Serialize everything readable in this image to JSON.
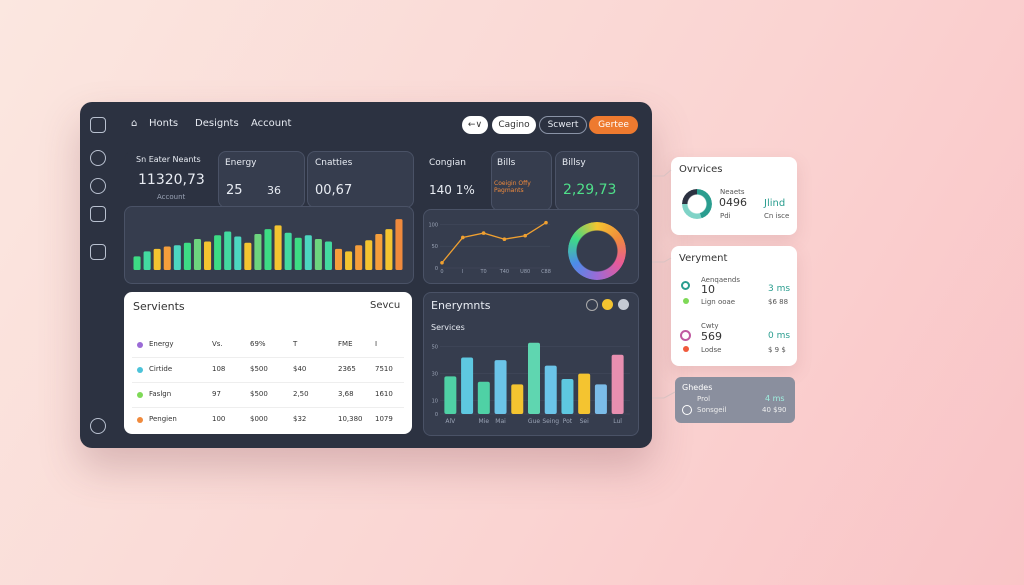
{
  "nav": {
    "items": [
      "Honts",
      "Designts",
      "Account"
    ],
    "buttons": [
      "←∨",
      "Cagino",
      "Scwert",
      "Gertee"
    ]
  },
  "cards": [
    {
      "title": "Sn Eater Neants",
      "value": "11320,73",
      "caption": "Account"
    },
    {
      "title": "Energy",
      "value": "25",
      "value2": "36"
    },
    {
      "title": "Cnatties",
      "value": "00,67"
    },
    {
      "title": "Congian",
      "value": "140 1%"
    },
    {
      "title": "Bills",
      "caption": "Coeigin Offy Pagmants"
    },
    {
      "title": "Billsy",
      "value": "2,29,73"
    }
  ],
  "spark_bars": {
    "values": [
      22,
      30,
      34,
      38,
      40,
      44,
      50,
      46,
      56,
      62,
      54,
      44,
      58,
      66,
      72,
      60,
      52,
      56,
      50,
      46,
      34,
      30,
      40,
      48,
      58,
      66,
      82
    ],
    "colors": [
      "#3ddc84",
      "#43d9a0",
      "#f4c430",
      "#f59e3b",
      "#4cd6c0",
      "#3ddc84",
      "#6dd47e",
      "#f4c430",
      "#3ddc84",
      "#43d9a0",
      "#4cd6c0",
      "#f4c430",
      "#6dd47e",
      "#3ddc84",
      "#f4c430",
      "#43d9a0",
      "#3ddc84",
      "#4cd6c0",
      "#6dd47e",
      "#43d9a0",
      "#f59e3b",
      "#f4c430",
      "#f59e3b",
      "#f4c430",
      "#f59e3b",
      "#f4c430",
      "#f08a3c"
    ]
  },
  "line_chart": {
    "categories": [
      "0",
      "I",
      "T0",
      "T40",
      "U80",
      "C88"
    ],
    "values": [
      12,
      70,
      80,
      66,
      74,
      104
    ],
    "color": "#f0a030",
    "ylim": [
      0,
      110
    ],
    "yticks": [
      0,
      50,
      100
    ]
  },
  "table": {
    "title": "Servients",
    "action": "Sevcu",
    "rows": [
      [
        "Energy",
        "Vs.",
        "69%",
        "T",
        "FME",
        "I"
      ],
      [
        "Cirtide",
        "108",
        "$500",
        "$40",
        "2365",
        "7510"
      ],
      [
        "Faslgn",
        "97",
        "$500",
        "2,50",
        "3,68",
        "1610"
      ],
      [
        "Pengien",
        "100",
        "$000",
        "$32",
        "10,380",
        "1079"
      ]
    ],
    "dot_colors": [
      "#9b6bd6",
      "#4cc3d9",
      "#7ed957",
      "#f08a3c"
    ]
  },
  "panel": {
    "title": "Enerymnts",
    "subtitle": "Services"
  },
  "bar_chart": {
    "categories": [
      "AlV",
      null,
      "Mie",
      "Mai",
      null,
      "Gue",
      "Seing",
      "Pot",
      "Sei",
      null,
      "Lul"
    ],
    "values": [
      28,
      42,
      24,
      40,
      22,
      53,
      36,
      26,
      30,
      22,
      44
    ],
    "colors": [
      "#4fd1a5",
      "#5ec8e0",
      "#4fd1a5",
      "#6bc4e8",
      "#f4c430",
      "#5fd6b0",
      "#6bc4e8",
      "#5ec8e0",
      "#f4c430",
      "#7bbce8",
      "#e88fb0"
    ],
    "ylim": [
      0,
      55
    ],
    "yticks": [
      0,
      10,
      30,
      50
    ]
  },
  "side": {
    "overview": {
      "title": "Ovrvices",
      "label": "Neaets",
      "value": "0496",
      "caption": "Pdi",
      "accent": "Jlind",
      "accent_caption": "Cn isce"
    },
    "payment": {
      "title": "Veryment",
      "rows": [
        {
          "label": "Aenqaends",
          "value": "10",
          "right": "3 ms",
          "sub": "Lign ooae",
          "sub_right": "$6 88"
        },
        {
          "label": "Cwty",
          "value": "569",
          "right": "0 ms",
          "sub": "Lodse",
          "sub_right": "$ 9 $"
        }
      ]
    },
    "glance": {
      "title": "Ghedes",
      "label": "Prol",
      "right": "4 ms",
      "sub": "Sonsgeil",
      "sub_right": "40 $90"
    }
  }
}
